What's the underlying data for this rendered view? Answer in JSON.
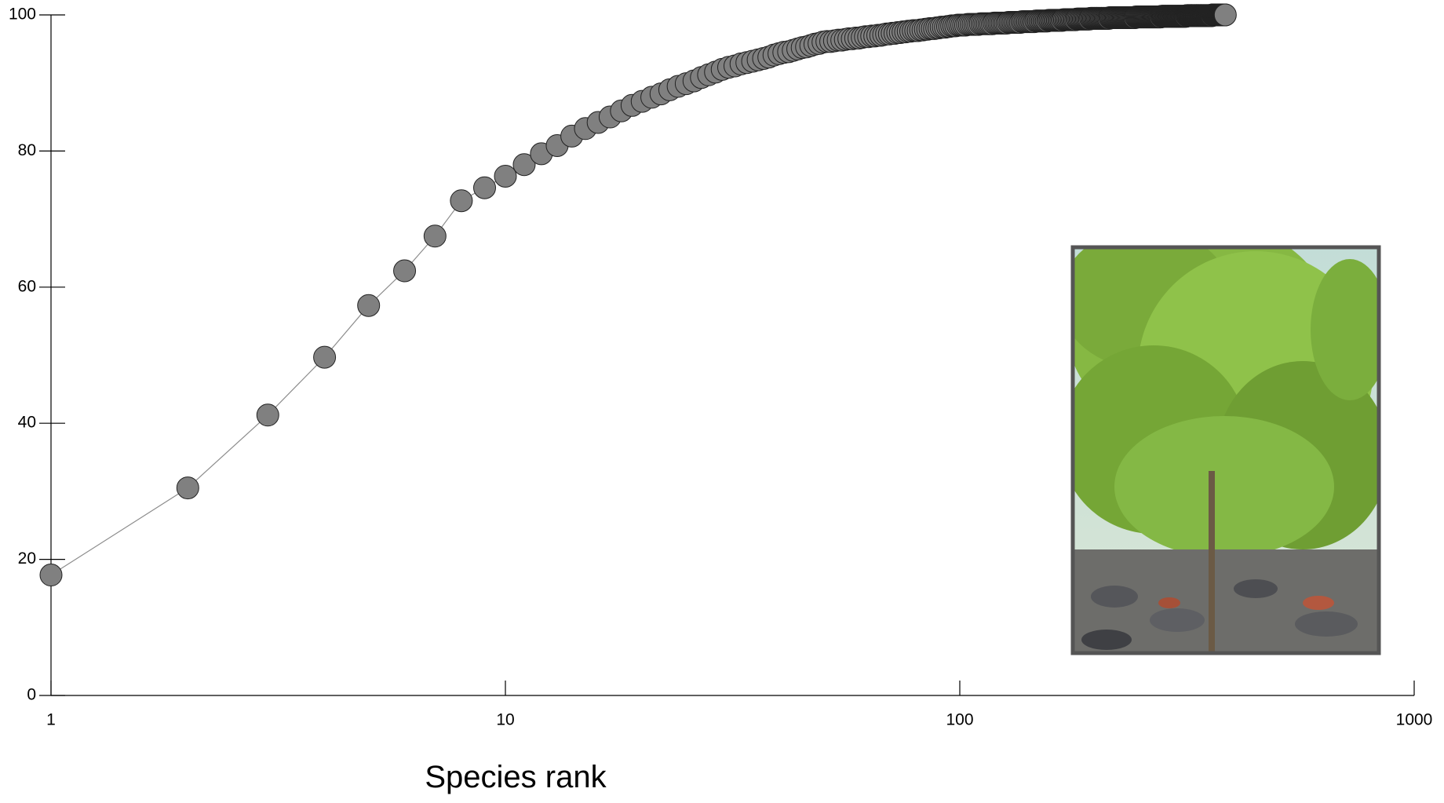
{
  "chart_data": {
    "type": "scatter",
    "xlabel": "Species rank",
    "xscale": "log",
    "marker_color": "#808080",
    "marker_edge": "#222222",
    "line_color": "#8c8c8c",
    "xlim": [
      1,
      1000
    ],
    "xticks": [
      1,
      10,
      100,
      1000
    ],
    "ylim": [
      0,
      100
    ],
    "yticks": [
      0,
      20,
      40,
      60,
      80,
      100
    ],
    "x": [
      1,
      2,
      3,
      4,
      5,
      6,
      7,
      8,
      9,
      10,
      11,
      12,
      13,
      14,
      15,
      16,
      17,
      18,
      19,
      20,
      21,
      22,
      23,
      24,
      25,
      26,
      27,
      28,
      29,
      30,
      31,
      32,
      33,
      34,
      35,
      36,
      37,
      38,
      39,
      40,
      41,
      42,
      43,
      44,
      45,
      46,
      47,
      48,
      49,
      50,
      51,
      52,
      53,
      54,
      55,
      56,
      57,
      58,
      59,
      60,
      61,
      62,
      63,
      64,
      65,
      66,
      67,
      68,
      69,
      70,
      71,
      72,
      73,
      74,
      75,
      76,
      77,
      78,
      79,
      80,
      81,
      82,
      83,
      84,
      85,
      86,
      87,
      88,
      89,
      90,
      91,
      92,
      93,
      94,
      95,
      96,
      97,
      98,
      99,
      100,
      101,
      102,
      103,
      104,
      105,
      106,
      107,
      108,
      109,
      110,
      111,
      112,
      113,
      114,
      115,
      116,
      117,
      118,
      119,
      120,
      121,
      122,
      123,
      124,
      125,
      126,
      127,
      128,
      129,
      130,
      131,
      132,
      133,
      134,
      135,
      136,
      137,
      138,
      139,
      140,
      141,
      142,
      143,
      144,
      145,
      146,
      147,
      148,
      149,
      150,
      151,
      152,
      153,
      154,
      155,
      156,
      157,
      158,
      159,
      160,
      161,
      162,
      163,
      164,
      165,
      166,
      167,
      168,
      169,
      170,
      171,
      172,
      173,
      174,
      175,
      176,
      177,
      178,
      179,
      180,
      181,
      182,
      183,
      184,
      185,
      186,
      187,
      188,
      189,
      190,
      191,
      192,
      193,
      194,
      195,
      196,
      197,
      198,
      199,
      200,
      201,
      202,
      203,
      204,
      205,
      206,
      207,
      208,
      209,
      210,
      211,
      212,
      213,
      214,
      215,
      216,
      217,
      218,
      219,
      220,
      221,
      222,
      223,
      224,
      225,
      226,
      227,
      228,
      229,
      230,
      231,
      232,
      233,
      234,
      235,
      236,
      237,
      238,
      239,
      240,
      241,
      242,
      243,
      244,
      245,
      246,
      247,
      248,
      249,
      250,
      251,
      252,
      253,
      254,
      255,
      256,
      257,
      258,
      259,
      260,
      261,
      262,
      263,
      264,
      265,
      266,
      267,
      268,
      269,
      270,
      271,
      272,
      273,
      274,
      275,
      276,
      277,
      278,
      279,
      280,
      281,
      282,
      283,
      284,
      285,
      286,
      287,
      288,
      289,
      290,
      291,
      292,
      293,
      294,
      295,
      296,
      297,
      298,
      299,
      300,
      301,
      302,
      303,
      304,
      305,
      306,
      307,
      308,
      309,
      310,
      311,
      312,
      313,
      314,
      315,
      316,
      317,
      318,
      319,
      320,
      321,
      322,
      323,
      324,
      325,
      326,
      327,
      328,
      329,
      330,
      331,
      332,
      333,
      334,
      335,
      336,
      337,
      338,
      339,
      340,
      341,
      342,
      343,
      344,
      345,
      346,
      347,
      348,
      349,
      350,
      351,
      352,
      353,
      354,
      355,
      356,
      357,
      358,
      359,
      360,
      361,
      362,
      363,
      364,
      365,
      366,
      367,
      368,
      369,
      370,
      371,
      372,
      373,
      374,
      375,
      376,
      377,
      378,
      379,
      380,
      381,
      382,
      383,
      384
    ],
    "values": [
      17.7,
      30.5,
      41.2,
      49.7,
      57.3,
      62.4,
      67.5,
      72.7,
      74.6,
      76.3,
      78.0,
      79.6,
      80.8,
      82.2,
      83.3,
      84.2,
      85.0,
      85.9,
      86.7,
      87.3,
      87.9,
      88.4,
      89.0,
      89.5,
      89.9,
      90.3,
      90.8,
      91.2,
      91.6,
      92.0,
      92.3,
      92.5,
      92.8,
      93.0,
      93.2,
      93.4,
      93.6,
      93.8,
      94.1,
      94.3,
      94.5,
      94.6,
      94.8,
      95.0,
      95.2,
      95.3,
      95.5,
      95.7,
      95.8,
      96.0,
      96.1,
      96.1,
      96.2,
      96.3,
      96.3,
      96.4,
      96.5,
      96.5,
      96.6,
      96.6,
      96.7,
      96.8,
      96.8,
      96.9,
      96.9,
      97.0,
      97.0,
      97.1,
      97.2,
      97.2,
      97.3,
      97.3,
      97.4,
      97.4,
      97.5,
      97.5,
      97.6,
      97.6,
      97.7,
      97.7,
      97.7,
      97.8,
      97.8,
      97.9,
      97.9,
      98.0,
      98.0,
      98.0,
      98.1,
      98.1,
      98.2,
      98.2,
      98.2,
      98.3,
      98.3,
      98.4,
      98.4,
      98.4,
      98.5,
      98.5,
      98.5,
      98.5,
      98.5,
      98.6,
      98.6,
      98.6,
      98.6,
      98.6,
      98.6,
      98.6,
      98.7,
      98.7,
      98.7,
      98.7,
      98.7,
      98.7,
      98.7,
      98.7,
      98.8,
      98.8,
      98.8,
      98.8,
      98.8,
      98.8,
      98.8,
      98.8,
      98.8,
      98.9,
      98.9,
      98.9,
      98.9,
      98.9,
      98.9,
      98.9,
      98.9,
      98.9,
      99.0,
      99.0,
      99.0,
      99.0,
      99.0,
      99.0,
      99.0,
      99.0,
      99.0,
      99.0,
      99.1,
      99.1,
      99.1,
      99.1,
      99.1,
      99.1,
      99.1,
      99.1,
      99.1,
      99.1,
      99.2,
      99.2,
      99.2,
      99.2,
      99.2,
      99.2,
      99.2,
      99.2,
      99.2,
      99.2,
      99.2,
      99.2,
      99.3,
      99.3,
      99.3,
      99.3,
      99.3,
      99.3,
      99.3,
      99.3,
      99.3,
      99.3,
      99.3,
      99.3,
      99.4,
      99.4,
      99.4,
      99.4,
      99.4,
      99.4,
      99.4,
      99.4,
      99.4,
      99.4,
      99.4,
      99.4,
      99.4,
      99.5,
      99.5,
      99.5,
      99.5,
      99.5,
      99.5,
      99.5,
      99.5,
      99.5,
      99.5,
      99.5,
      99.5,
      99.5,
      99.5,
      99.5,
      99.5,
      99.5,
      99.5,
      99.5,
      99.5,
      99.6,
      99.6,
      99.6,
      99.6,
      99.6,
      99.6,
      99.6,
      99.6,
      99.6,
      99.6,
      99.6,
      99.6,
      99.6,
      99.6,
      99.6,
      99.6,
      99.6,
      99.6,
      99.6,
      99.6,
      99.6,
      99.6,
      99.6,
      99.6,
      99.6,
      99.6,
      99.6,
      99.6,
      99.6,
      99.6,
      99.7,
      99.7,
      99.7,
      99.7,
      99.7,
      99.7,
      99.7,
      99.7,
      99.7,
      99.7,
      99.7,
      99.7,
      99.7,
      99.7,
      99.7,
      99.7,
      99.7,
      99.7,
      99.7,
      99.7,
      99.7,
      99.7,
      99.7,
      99.7,
      99.7,
      99.7,
      99.7,
      99.7,
      99.7,
      99.7,
      99.7,
      99.7,
      99.7,
      99.7,
      99.8,
      99.8,
      99.8,
      99.8,
      99.8,
      99.8,
      99.8,
      99.8,
      99.8,
      99.8,
      99.8,
      99.8,
      99.8,
      99.8,
      99.8,
      99.8,
      99.8,
      99.8,
      99.8,
      99.8,
      99.8,
      99.8,
      99.8,
      99.8,
      99.8,
      99.8,
      99.8,
      99.8,
      99.8,
      99.8,
      99.8,
      99.8,
      99.8,
      99.8,
      99.8,
      99.8,
      99.8,
      99.8,
      99.9,
      99.9,
      99.9,
      99.9,
      99.9,
      99.9,
      99.9,
      99.9,
      99.9,
      99.9,
      99.9,
      99.9,
      99.9,
      99.9,
      99.9,
      99.9,
      99.9,
      99.9,
      99.9,
      99.9,
      99.9,
      99.9,
      99.9,
      99.9,
      99.9,
      99.9,
      99.9,
      99.9,
      99.9,
      99.9,
      99.9,
      99.9,
      99.9,
      99.9,
      99.9,
      99.9,
      99.9,
      99.9,
      99.9,
      99.9,
      99.9,
      99.9,
      99.9,
      99.9,
      100,
      100,
      100,
      100,
      100,
      100,
      100,
      100,
      100,
      100,
      100,
      100,
      100,
      100,
      100,
      100,
      100,
      100,
      100,
      100,
      100,
      100,
      100,
      100,
      100
    ]
  }
}
